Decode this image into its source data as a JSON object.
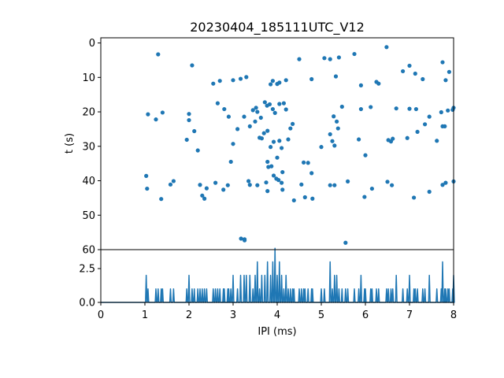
{
  "chart_data": [
    {
      "type": "scatter",
      "title": "20230404_185111UTC_V12",
      "xlabel": "",
      "ylabel": "t (s)",
      "xlim": [
        0,
        8
      ],
      "ylim": [
        60,
        -1.5
      ],
      "y_inverted": true,
      "yticks": [
        0,
        10,
        20,
        30,
        40,
        50,
        60
      ],
      "color": "#1f77b4",
      "points": [
        [
          1.3,
          3.3
        ],
        [
          2.07,
          6.5
        ],
        [
          3.17,
          10.4
        ],
        [
          3.3,
          9.9
        ],
        [
          2.55,
          11.8
        ],
        [
          2.7,
          11.0
        ],
        [
          3.0,
          10.8
        ],
        [
          4.5,
          4.7
        ],
        [
          5.07,
          4.4
        ],
        [
          5.2,
          4.7
        ],
        [
          5.4,
          4.2
        ],
        [
          5.75,
          3.2
        ],
        [
          6.48,
          1.2
        ],
        [
          4.78,
          10.5
        ],
        [
          5.33,
          9.7
        ],
        [
          5.9,
          12.3
        ],
        [
          6.3,
          11.8
        ],
        [
          6.25,
          11.3
        ],
        [
          6.85,
          8.2
        ],
        [
          7.0,
          6.6
        ],
        [
          7.13,
          8.9
        ],
        [
          7.3,
          10.5
        ],
        [
          7.75,
          5.6
        ],
        [
          7.9,
          8.4
        ],
        [
          7.82,
          10.8
        ],
        [
          3.85,
          12.0
        ],
        [
          3.9,
          11.0
        ],
        [
          4.0,
          11.9
        ],
        [
          4.05,
          11.5
        ],
        [
          4.2,
          10.8
        ],
        [
          3.72,
          17.2
        ],
        [
          3.77,
          18.2
        ],
        [
          3.83,
          17.8
        ],
        [
          3.9,
          19.2
        ],
        [
          3.95,
          20.3
        ],
        [
          4.05,
          17.7
        ],
        [
          4.15,
          17.5
        ],
        [
          4.2,
          19.3
        ],
        [
          3.52,
          18.8
        ],
        [
          3.45,
          19.5
        ],
        [
          3.55,
          20.0
        ],
        [
          3.63,
          21.7
        ],
        [
          3.5,
          22.8
        ],
        [
          1.07,
          20.7
        ],
        [
          1.25,
          22.2
        ],
        [
          1.4,
          20.2
        ],
        [
          2.0,
          20.6
        ],
        [
          2.12,
          25.6
        ],
        [
          2.2,
          31.2
        ],
        [
          1.95,
          28.1
        ],
        [
          2.0,
          22.4
        ],
        [
          2.65,
          17.5
        ],
        [
          2.8,
          19.2
        ],
        [
          2.9,
          21.4
        ],
        [
          3.25,
          21.4
        ],
        [
          3.1,
          25.0
        ],
        [
          3.38,
          24.2
        ],
        [
          3.0,
          29.3
        ],
        [
          2.95,
          34.5
        ],
        [
          3.6,
          27.5
        ],
        [
          3.65,
          27.7
        ],
        [
          3.7,
          26.2
        ],
        [
          3.78,
          25.5
        ],
        [
          3.85,
          30.2
        ],
        [
          3.92,
          28.7
        ],
        [
          4.05,
          28.4
        ],
        [
          4.0,
          33.3
        ],
        [
          4.1,
          30.5
        ],
        [
          4.25,
          28.0
        ],
        [
          4.3,
          24.8
        ],
        [
          4.35,
          23.5
        ],
        [
          4.55,
          41.1
        ],
        [
          4.6,
          34.7
        ],
        [
          4.7,
          34.8
        ],
        [
          4.78,
          37.8
        ],
        [
          5.2,
          26.5
        ],
        [
          5.28,
          21.3
        ],
        [
          5.35,
          22.8
        ],
        [
          5.38,
          24.8
        ],
        [
          5.47,
          18.5
        ],
        [
          5.0,
          30.2
        ],
        [
          5.25,
          28.5
        ],
        [
          5.3,
          29.8
        ],
        [
          5.2,
          41.3
        ],
        [
          5.3,
          41.3
        ],
        [
          5.6,
          40.2
        ],
        [
          5.85,
          28.0
        ],
        [
          6.0,
          32.6
        ],
        [
          5.9,
          19.2
        ],
        [
          6.12,
          18.6
        ],
        [
          6.58,
          28.6
        ],
        [
          6.52,
          28.2
        ],
        [
          6.62,
          27.8
        ],
        [
          6.7,
          19.0
        ],
        [
          6.95,
          27.6
        ],
        [
          7.0,
          19.1
        ],
        [
          7.18,
          25.8
        ],
        [
          7.15,
          19.2
        ],
        [
          7.35,
          23.6
        ],
        [
          7.45,
          21.4
        ],
        [
          7.62,
          28.4
        ],
        [
          7.72,
          20.1
        ],
        [
          7.75,
          24.2
        ],
        [
          7.8,
          24.2
        ],
        [
          7.87,
          19.6
        ],
        [
          8.0,
          18.8
        ],
        [
          7.98,
          19.4
        ],
        [
          7.75,
          41.2
        ],
        [
          7.82,
          40.6
        ],
        [
          8.0,
          40.2
        ],
        [
          7.45,
          43.2
        ],
        [
          7.1,
          44.9
        ],
        [
          6.5,
          40.3
        ],
        [
          6.6,
          41.3
        ],
        [
          6.15,
          42.3
        ],
        [
          5.98,
          44.7
        ],
        [
          1.03,
          38.6
        ],
        [
          1.05,
          42.3
        ],
        [
          1.37,
          45.3
        ],
        [
          1.58,
          41.1
        ],
        [
          1.65,
          40.1
        ],
        [
          2.25,
          41.2
        ],
        [
          2.3,
          44.3
        ],
        [
          2.35,
          45.2
        ],
        [
          2.4,
          42.2
        ],
        [
          2.6,
          40.6
        ],
        [
          2.78,
          42.6
        ],
        [
          2.88,
          41.3
        ],
        [
          3.35,
          40.1
        ],
        [
          3.38,
          41.2
        ],
        [
          3.55,
          41.3
        ],
        [
          3.75,
          40.5
        ],
        [
          3.78,
          43.0
        ],
        [
          3.78,
          34.5
        ],
        [
          3.8,
          36.0
        ],
        [
          3.87,
          35.8
        ],
        [
          3.92,
          38.5
        ],
        [
          3.98,
          39.4
        ],
        [
          4.03,
          39.8
        ],
        [
          4.12,
          37.5
        ],
        [
          4.1,
          40.6
        ],
        [
          4.12,
          42.6
        ],
        [
          4.38,
          45.7
        ],
        [
          4.63,
          44.8
        ],
        [
          4.8,
          45.2
        ],
        [
          3.18,
          56.8
        ],
        [
          3.26,
          57.0
        ],
        [
          3.26,
          57.3
        ],
        [
          5.55,
          58.0
        ]
      ]
    },
    {
      "type": "line",
      "xlabel": "IPI (ms)",
      "ylabel": "",
      "xlim": [
        0,
        8
      ],
      "ylim": [
        0,
        3.9
      ],
      "xticks": [
        0,
        1,
        2,
        3,
        4,
        5,
        6,
        7,
        8
      ],
      "yticks": [
        "0.0",
        "2.5"
      ],
      "ytick_values": [
        0,
        2.5
      ],
      "color": "#1f77b4",
      "spikes": [
        [
          1.03,
          2.0
        ],
        [
          1.07,
          1.0
        ],
        [
          1.25,
          1.0
        ],
        [
          1.3,
          1.0
        ],
        [
          1.37,
          1.0
        ],
        [
          1.4,
          1.0
        ],
        [
          1.58,
          1.0
        ],
        [
          1.65,
          1.0
        ],
        [
          1.95,
          1.0
        ],
        [
          2.0,
          2.0
        ],
        [
          2.07,
          1.0
        ],
        [
          2.12,
          1.0
        ],
        [
          2.2,
          1.0
        ],
        [
          2.25,
          1.0
        ],
        [
          2.3,
          1.0
        ],
        [
          2.35,
          1.0
        ],
        [
          2.4,
          1.0
        ],
        [
          2.55,
          1.0
        ],
        [
          2.6,
          1.0
        ],
        [
          2.65,
          1.0
        ],
        [
          2.7,
          1.0
        ],
        [
          2.78,
          1.0
        ],
        [
          2.8,
          1.0
        ],
        [
          2.88,
          1.0
        ],
        [
          2.9,
          1.0
        ],
        [
          2.95,
          1.0
        ],
        [
          3.0,
          2.0
        ],
        [
          3.1,
          1.0
        ],
        [
          3.17,
          2.0
        ],
        [
          3.25,
          2.0
        ],
        [
          3.3,
          2.0
        ],
        [
          3.38,
          2.0
        ],
        [
          3.45,
          1.0
        ],
        [
          3.5,
          2.0
        ],
        [
          3.55,
          3.0
        ],
        [
          3.6,
          1.0
        ],
        [
          3.65,
          2.0
        ],
        [
          3.72,
          2.0
        ],
        [
          3.78,
          3.0
        ],
        [
          3.85,
          2.0
        ],
        [
          3.9,
          3.0
        ],
        [
          3.95,
          4.0
        ],
        [
          4.0,
          2.0
        ],
        [
          4.05,
          3.0
        ],
        [
          4.1,
          2.0
        ],
        [
          4.15,
          1.0
        ],
        [
          4.2,
          2.0
        ],
        [
          4.25,
          1.0
        ],
        [
          4.3,
          1.0
        ],
        [
          4.35,
          1.0
        ],
        [
          4.38,
          1.0
        ],
        [
          4.5,
          1.0
        ],
        [
          4.55,
          1.0
        ],
        [
          4.6,
          1.0
        ],
        [
          4.63,
          1.0
        ],
        [
          4.7,
          1.0
        ],
        [
          4.78,
          1.0
        ],
        [
          4.8,
          1.0
        ],
        [
          5.0,
          1.0
        ],
        [
          5.07,
          1.0
        ],
        [
          5.2,
          3.0
        ],
        [
          5.25,
          1.0
        ],
        [
          5.3,
          2.0
        ],
        [
          5.35,
          2.0
        ],
        [
          5.4,
          1.0
        ],
        [
          5.47,
          1.0
        ],
        [
          5.55,
          1.0
        ],
        [
          5.6,
          1.0
        ],
        [
          5.75,
          1.0
        ],
        [
          5.85,
          1.0
        ],
        [
          5.9,
          2.0
        ],
        [
          5.98,
          1.0
        ],
        [
          6.0,
          1.0
        ],
        [
          6.12,
          1.0
        ],
        [
          6.15,
          1.0
        ],
        [
          6.25,
          1.0
        ],
        [
          6.3,
          1.0
        ],
        [
          6.48,
          1.0
        ],
        [
          6.52,
          1.0
        ],
        [
          6.58,
          1.0
        ],
        [
          6.62,
          1.0
        ],
        [
          6.7,
          2.0
        ],
        [
          6.85,
          1.0
        ],
        [
          6.95,
          1.0
        ],
        [
          7.0,
          2.0
        ],
        [
          7.1,
          1.0
        ],
        [
          7.13,
          1.0
        ],
        [
          7.18,
          1.0
        ],
        [
          7.3,
          1.0
        ],
        [
          7.35,
          1.0
        ],
        [
          7.45,
          2.0
        ],
        [
          7.62,
          1.0
        ],
        [
          7.72,
          1.0
        ],
        [
          7.75,
          3.0
        ],
        [
          7.8,
          1.0
        ],
        [
          7.82,
          1.0
        ],
        [
          7.87,
          1.0
        ],
        [
          7.9,
          1.0
        ],
        [
          7.98,
          1.0
        ],
        [
          8.0,
          2.0
        ]
      ]
    }
  ]
}
